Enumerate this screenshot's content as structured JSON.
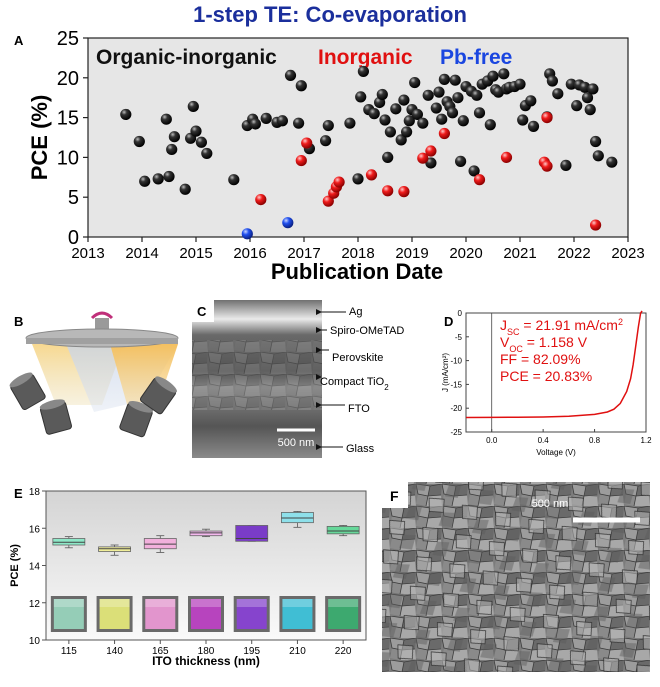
{
  "figure_title": "1-step TE: Co-evaporation",
  "panel_labels": {
    "a": "A",
    "b": "B",
    "c": "C",
    "d": "D",
    "e": "E",
    "f": "F"
  },
  "chart_data": [
    {
      "panel": "A",
      "type": "scatter",
      "title": "",
      "xlabel": "Publication Date",
      "ylabel": "PCE (%)",
      "xlim": [
        2013,
        2023
      ],
      "ylim": [
        0,
        25
      ],
      "x_ticks": [
        "2013",
        "2014",
        "2015",
        "2016",
        "2017",
        "2018",
        "2019",
        "2020",
        "2021",
        "2022",
        "2023"
      ],
      "y_ticks": [
        "0",
        "5",
        "10",
        "15",
        "20",
        "25"
      ],
      "background": "#e6e6e6",
      "legend": "top, inline text",
      "series": [
        {
          "name": "Organic-inorganic",
          "color": "#111111",
          "points": [
            [
              2013.7,
              15.4
            ],
            [
              2013.95,
              12.0
            ],
            [
              2014.05,
              7.0
            ],
            [
              2014.3,
              7.3
            ],
            [
              2014.45,
              14.8
            ],
            [
              2014.5,
              7.6
            ],
            [
              2014.55,
              11.0
            ],
            [
              2014.6,
              12.6
            ],
            [
              2014.8,
              6.0
            ],
            [
              2014.9,
              12.4
            ],
            [
              2014.95,
              16.4
            ],
            [
              2015.0,
              13.3
            ],
            [
              2015.1,
              11.9
            ],
            [
              2015.2,
              10.5
            ],
            [
              2015.7,
              7.2
            ],
            [
              2015.95,
              14.0
            ],
            [
              2016.05,
              14.8
            ],
            [
              2016.1,
              14.2
            ],
            [
              2016.3,
              14.9
            ],
            [
              2016.5,
              14.4
            ],
            [
              2016.6,
              14.6
            ],
            [
              2016.75,
              20.3
            ],
            [
              2016.9,
              14.3
            ],
            [
              2016.95,
              19.0
            ],
            [
              2017.1,
              11.1
            ],
            [
              2017.4,
              12.1
            ],
            [
              2017.45,
              14.0
            ],
            [
              2017.85,
              14.3
            ],
            [
              2018.0,
              7.3
            ],
            [
              2018.05,
              17.6
            ],
            [
              2018.1,
              20.8
            ],
            [
              2018.2,
              16.0
            ],
            [
              2018.3,
              15.5
            ],
            [
              2018.4,
              16.9
            ],
            [
              2018.45,
              17.9
            ],
            [
              2018.5,
              14.7
            ],
            [
              2018.55,
              10.0
            ],
            [
              2018.6,
              13.2
            ],
            [
              2018.7,
              16.1
            ],
            [
              2018.8,
              12.2
            ],
            [
              2018.85,
              17.2
            ],
            [
              2018.9,
              13.2
            ],
            [
              2018.95,
              14.6
            ],
            [
              2019.0,
              16.0
            ],
            [
              2019.05,
              19.4
            ],
            [
              2019.1,
              15.4
            ],
            [
              2019.2,
              14.3
            ],
            [
              2019.3,
              17.8
            ],
            [
              2019.35,
              9.3
            ],
            [
              2019.45,
              16.2
            ],
            [
              2019.5,
              18.2
            ],
            [
              2019.55,
              14.8
            ],
            [
              2019.6,
              19.8
            ],
            [
              2019.65,
              17.0
            ],
            [
              2019.7,
              16.4
            ],
            [
              2019.75,
              15.6
            ],
            [
              2019.8,
              19.7
            ],
            [
              2019.85,
              17.5
            ],
            [
              2019.9,
              9.5
            ],
            [
              2019.95,
              14.6
            ],
            [
              2020.0,
              18.9
            ],
            [
              2020.1,
              18.3
            ],
            [
              2020.15,
              8.3
            ],
            [
              2020.2,
              17.8
            ],
            [
              2020.25,
              15.6
            ],
            [
              2020.3,
              19.2
            ],
            [
              2020.4,
              19.6
            ],
            [
              2020.45,
              14.1
            ],
            [
              2020.5,
              20.2
            ],
            [
              2020.55,
              18.5
            ],
            [
              2020.6,
              18.2
            ],
            [
              2020.7,
              20.5
            ],
            [
              2020.75,
              18.6
            ],
            [
              2020.8,
              18.8
            ],
            [
              2020.9,
              18.9
            ],
            [
              2021.0,
              19.2
            ],
            [
              2021.05,
              14.7
            ],
            [
              2021.1,
              16.5
            ],
            [
              2021.2,
              17.1
            ],
            [
              2021.25,
              13.9
            ],
            [
              2021.5,
              15.1
            ],
            [
              2021.55,
              20.5
            ],
            [
              2021.6,
              19.6
            ],
            [
              2021.7,
              18.0
            ],
            [
              2021.85,
              9.0
            ],
            [
              2021.95,
              19.2
            ],
            [
              2022.05,
              16.5
            ],
            [
              2022.1,
              19.1
            ],
            [
              2022.2,
              18.8
            ],
            [
              2022.25,
              17.5
            ],
            [
              2022.3,
              16.0
            ],
            [
              2022.35,
              18.6
            ],
            [
              2022.4,
              12.0
            ],
            [
              2022.45,
              10.2
            ],
            [
              2022.7,
              9.4
            ]
          ]
        },
        {
          "name": "Inorganic",
          "color": "#e01010",
          "points": [
            [
              2016.2,
              4.7
            ],
            [
              2016.95,
              9.6
            ],
            [
              2017.05,
              11.8
            ],
            [
              2017.45,
              4.5
            ],
            [
              2017.55,
              5.5
            ],
            [
              2017.6,
              6.3
            ],
            [
              2017.65,
              6.9
            ],
            [
              2018.25,
              7.8
            ],
            [
              2018.55,
              5.8
            ],
            [
              2018.85,
              5.7
            ],
            [
              2019.2,
              9.9
            ],
            [
              2019.35,
              10.8
            ],
            [
              2019.6,
              13.0
            ],
            [
              2020.25,
              7.2
            ],
            [
              2020.75,
              10.0
            ],
            [
              2021.45,
              9.4
            ],
            [
              2021.5,
              8.9
            ],
            [
              2021.5,
              15.0
            ],
            [
              2022.4,
              1.5
            ]
          ]
        },
        {
          "name": "Pb-free",
          "color": "#1a46e0",
          "points": [
            [
              2015.95,
              0.4
            ],
            [
              2016.7,
              1.8
            ]
          ]
        }
      ]
    },
    {
      "panel": "D",
      "type": "line",
      "title": "",
      "xlabel": "Voltage (V)",
      "ylabel": "J (mA/cm²)",
      "xlim": [
        -0.2,
        1.2
      ],
      "ylim": [
        -25,
        0
      ],
      "x_ticks": [
        "0.0",
        "0.4",
        "0.8",
        "1.2"
      ],
      "y_ticks": [
        "0",
        "-5",
        "-10",
        "-15",
        "-20",
        "-25"
      ],
      "series": [
        {
          "name": "",
          "color": "#e01010",
          "x": [
            -0.2,
            0.0,
            0.2,
            0.4,
            0.6,
            0.8,
            0.9,
            0.95,
            1.0,
            1.05,
            1.08,
            1.1,
            1.12,
            1.14,
            1.158
          ],
          "y": [
            -21.95,
            -21.93,
            -21.9,
            -21.85,
            -21.7,
            -21.3,
            -20.8,
            -20.2,
            -19.0,
            -16.5,
            -13.8,
            -10.9,
            -7.0,
            -3.0,
            0
          ]
        }
      ],
      "annotations": [
        {
          "label": "J",
          "sub": "SC",
          "value": " = 21.91 mA/cm",
          "sup": "2"
        },
        {
          "label": "V",
          "sub": "OC",
          "value": " = 1.158 V",
          "sup": ""
        },
        {
          "label": "FF = 82.09%",
          "sub": "",
          "value": "",
          "sup": ""
        },
        {
          "label": "PCE = 20.83%",
          "sub": "",
          "value": "",
          "sup": ""
        }
      ]
    },
    {
      "panel": "E",
      "type": "box",
      "title": "",
      "xlabel": "ITO thickness (nm)",
      "ylabel": "PCE (%)",
      "ylim": [
        10,
        18
      ],
      "y_ticks": [
        "10",
        "12",
        "14",
        "16",
        "18"
      ],
      "categories": [
        "115",
        "140",
        "165",
        "180",
        "195",
        "210",
        "220"
      ],
      "boxes": [
        {
          "q1": 15.1,
          "median": 15.25,
          "q3": 15.45,
          "min": 14.95,
          "max": 15.55,
          "color": "#8ee8c8"
        },
        {
          "q1": 14.75,
          "median": 14.9,
          "q3": 15.0,
          "min": 14.55,
          "max": 15.1,
          "color": "#f0ee9a"
        },
        {
          "q1": 14.9,
          "median": 15.15,
          "q3": 15.45,
          "min": 14.7,
          "max": 15.6,
          "color": "#f2b0dc"
        },
        {
          "q1": 15.6,
          "median": 15.75,
          "q3": 15.85,
          "min": 15.55,
          "max": 15.95,
          "color": "#f4b8ee"
        },
        {
          "q1": 15.3,
          "median": 15.45,
          "q3": 16.15,
          "min": 15.3,
          "max": 16.15,
          "color": "#7a3cc8"
        },
        {
          "q1": 16.3,
          "median": 16.55,
          "q3": 16.85,
          "min": 16.05,
          "max": 16.9,
          "color": "#8ee0ea"
        },
        {
          "q1": 15.7,
          "median": 15.85,
          "q3": 16.1,
          "min": 15.6,
          "max": 16.15,
          "color": "#66d89a"
        }
      ],
      "swatch_colors": [
        "#9ad8c0",
        "#e8ec7a",
        "#f09ad8",
        "#c040c8",
        "#8a40d8",
        "#3cc8e0",
        "#38b070"
      ]
    }
  ],
  "panel_b": {},
  "panel_c": {
    "labels": [
      "Ag",
      "Spiro-OMeTAD",
      "Perovskite",
      "Compact TiO",
      "FTO",
      "Glass"
    ],
    "tio2_sub": "2",
    "scale_bar": "500 nm"
  },
  "panel_f": {
    "scale_bar": "500 nm"
  },
  "colors": {
    "organic": "#111111",
    "inorganic": "#e01010",
    "pbfree": "#1a46e0",
    "title": "#1b2f9c"
  }
}
